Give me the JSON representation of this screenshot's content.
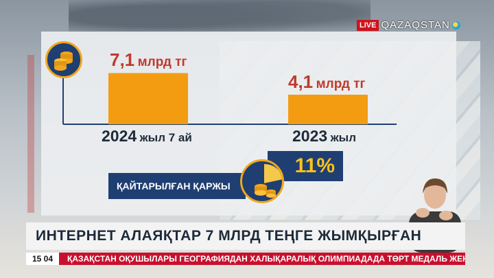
{
  "channel": {
    "live_label": "LIVE",
    "brand": "QAZAQSTAN"
  },
  "chart_data": {
    "type": "bar",
    "categories": [
      "2024 жыл 7 ай",
      "2023 жыл"
    ],
    "category_parts": [
      {
        "year": "2024",
        "rest": "жыл 7 ай"
      },
      {
        "year": "2023",
        "rest": "жыл"
      }
    ],
    "values": [
      7.1,
      4.1
    ],
    "value_labels": [
      {
        "number": "7,1",
        "unit": "млрд тг"
      },
      {
        "number": "4,1",
        "unit": "млрд тг"
      }
    ],
    "ylim": [
      0,
      10
    ],
    "colors": {
      "bar": "#f39c12",
      "label": "#c0392b",
      "axis": "#1f3f73"
    }
  },
  "returned": {
    "label": "ҚАЙТАРЫЛҒАН ҚАРЖЫ",
    "percent": "11%"
  },
  "headline": "ИНТЕРНЕТ АЛАЯҚТАР 7 МЛРД ТЕҢГЕ ЖЫМҚЫРҒАН",
  "ticker": {
    "time": "15 04",
    "text": "ҚАЗАҚСТАН ОҚУШЫЛАРЫ ГЕОГРАФИЯДАН ХАЛЫҚАРАЛЫҚ ОЛИМПИАДАДА ТӨРТ МЕДАЛЬ ЖЕҢІП АЛДЫ"
  },
  "icons": {
    "coins": "coins-icon",
    "pie": "pie-chart-icon"
  }
}
